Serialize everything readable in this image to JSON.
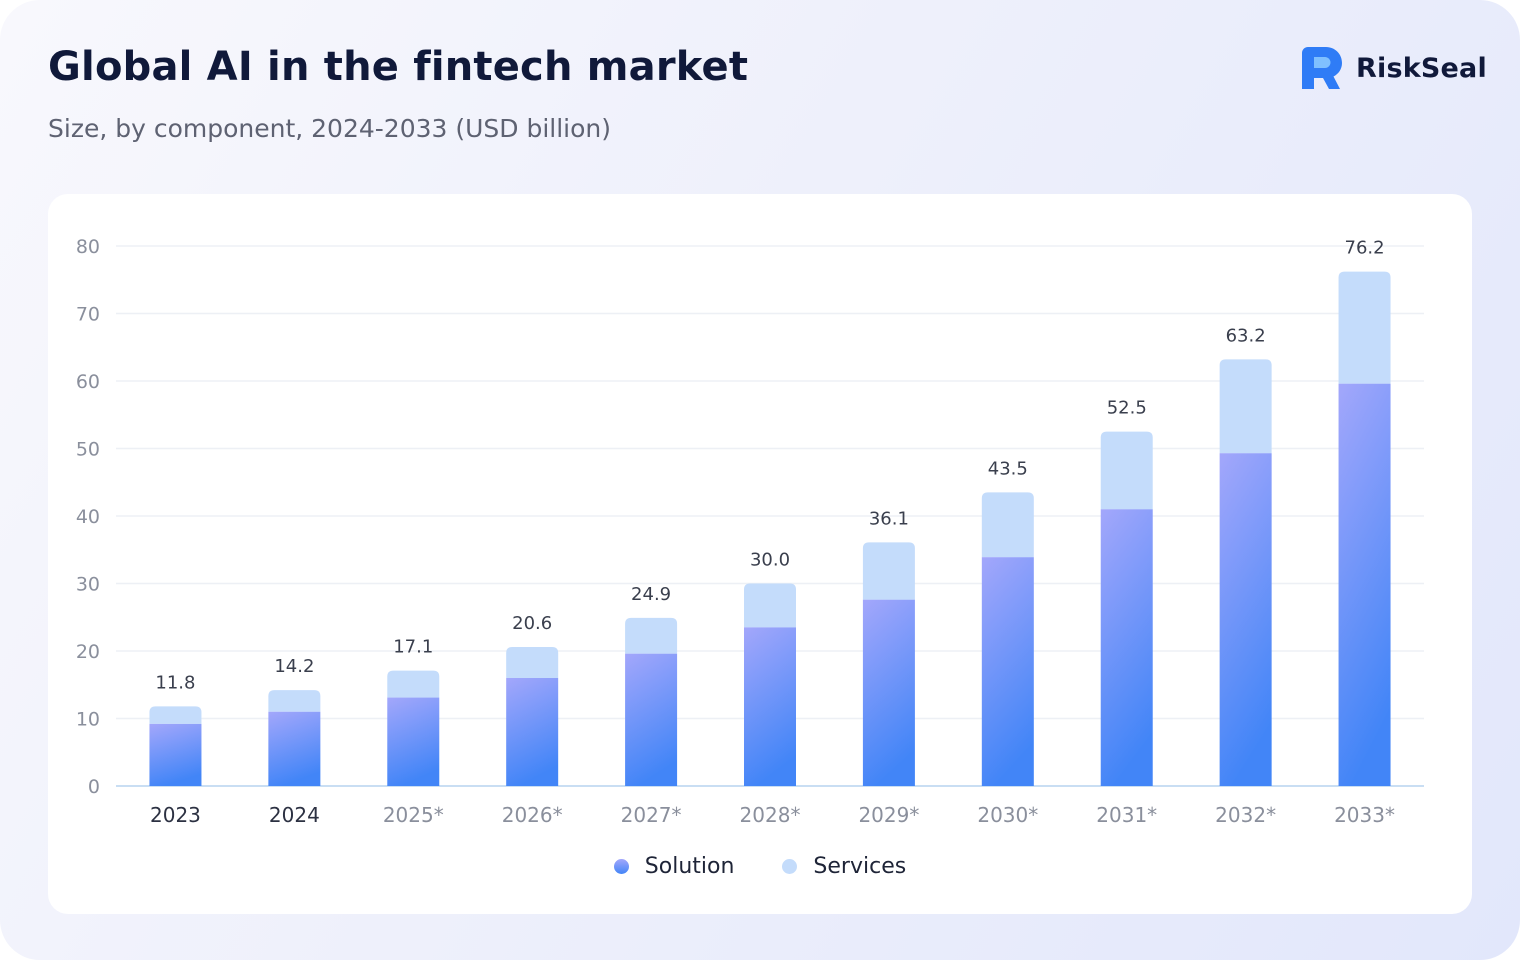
{
  "header": {
    "title": "Global AI in the fintech market",
    "subtitle": "Size, by component, 2024-2033 (USD billion)"
  },
  "brand": {
    "name": "RiskSeal",
    "logo_icon": "riskseal-logo-icon",
    "logo_color": "#2f7cf6"
  },
  "colors": {
    "solution_top": "#a3a7fb",
    "solution_bottom": "#4285f7",
    "services": "#c4dcfb",
    "grid": "#edf0f5",
    "axis": "#c9def3"
  },
  "chart_data": {
    "type": "bar",
    "stacked": true,
    "categories": [
      "2023",
      "2024",
      "2025*",
      "2026*",
      "2027*",
      "2028*",
      "2029*",
      "2030*",
      "2031*",
      "2032*",
      "2033*"
    ],
    "series": [
      {
        "name": "Solution",
        "values": [
          9.2,
          11.0,
          13.1,
          16.0,
          19.6,
          23.5,
          27.6,
          33.9,
          41.0,
          49.3,
          59.6
        ]
      },
      {
        "name": "Services",
        "values": [
          2.6,
          3.2,
          4.0,
          4.6,
          5.3,
          6.5,
          8.5,
          9.6,
          11.5,
          13.9,
          16.6
        ]
      }
    ],
    "totals": [
      "11.8",
      "14.2",
      "17.1",
      "20.6",
      "24.9",
      "30.0",
      "36.1",
      "43.5",
      "52.5",
      "63.2",
      "76.2"
    ],
    "yticks": [
      "0",
      "10",
      "20",
      "30",
      "40",
      "50",
      "60",
      "70",
      "80"
    ],
    "ylim": [
      0,
      80
    ],
    "xlabel": "",
    "ylabel": "",
    "grid": true,
    "legend_position": "bottom-center",
    "forecast_label_color": "#8a8f9c",
    "actual_label_color": "#2c3142"
  }
}
